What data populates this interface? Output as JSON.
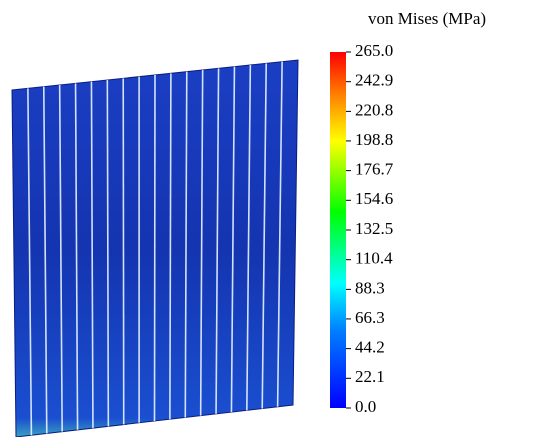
{
  "colorbar": {
    "title": "von Mises (MPa)",
    "range": [
      0,
      265
    ],
    "ticks": [
      {
        "value": 265,
        "label": "265.0"
      },
      {
        "value": 242.9,
        "label": "242.9"
      },
      {
        "value": 220.8,
        "label": "220.8"
      },
      {
        "value": 198.8,
        "label": "198.8"
      },
      {
        "value": 176.7,
        "label": "176.7"
      },
      {
        "value": 154.6,
        "label": "154.6"
      },
      {
        "value": 132.5,
        "label": "132.5"
      },
      {
        "value": 110.4,
        "label": "110.4"
      },
      {
        "value": 88.3,
        "label": "88.3"
      },
      {
        "value": 66.3,
        "label": "66.3"
      },
      {
        "value": 44.2,
        "label": "44.2"
      },
      {
        "value": 22.1,
        "label": "22.1"
      },
      {
        "value": 0,
        "label": "0.0"
      }
    ]
  }
}
